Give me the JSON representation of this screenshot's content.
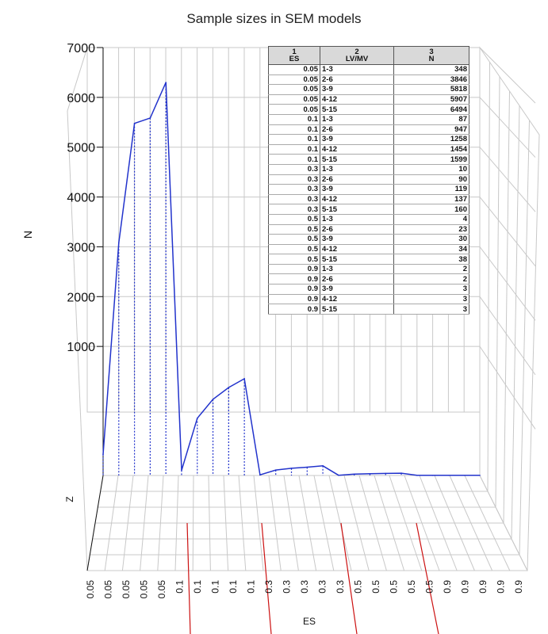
{
  "chart_data": {
    "type": "line",
    "title": "Sample sizes in SEM models",
    "ylabel": "N",
    "zlabel": "Z",
    "xlabel": "ES",
    "ylim": [
      0,
      7000
    ],
    "y_ticks": [
      "1000",
      "2000",
      "3000",
      "4000",
      "5000",
      "6000",
      "7000"
    ],
    "x_tick_labels": [
      "0.05",
      "0.05",
      "0.05",
      "0.05",
      "0.05",
      "0.1",
      "0.1",
      "0.1",
      "0.1",
      "0.1",
      "0.3",
      "0.3",
      "0.3",
      "0.3",
      "0.3",
      "0.5",
      "0.5",
      "0.5",
      "0.5",
      "0.5",
      "0.9",
      "0.9",
      "0.9",
      "0.9",
      "0.9"
    ],
    "series": [
      {
        "values": [
          348,
          3846,
          5818,
          5907,
          6494,
          87,
          947,
          1258,
          1454,
          1599,
          10,
          90,
          119,
          137,
          160,
          4,
          23,
          30,
          34,
          38,
          2,
          2,
          3,
          3,
          3
        ]
      }
    ],
    "line_color": "#2233cc",
    "marker_line_color": "#cc1111",
    "grid": true
  },
  "table": {
    "headers": [
      {
        "num": "1",
        "name": "ES"
      },
      {
        "num": "2",
        "name": "LV/MV"
      },
      {
        "num": "3",
        "name": "N"
      }
    ],
    "rows": [
      [
        "0.05",
        "1-3",
        "348"
      ],
      [
        "0.05",
        "2-6",
        "3846"
      ],
      [
        "0.05",
        "3-9",
        "5818"
      ],
      [
        "0.05",
        "4-12",
        "5907"
      ],
      [
        "0.05",
        "5-15",
        "6494"
      ],
      [
        "0.1",
        "1-3",
        "87"
      ],
      [
        "0.1",
        "2-6",
        "947"
      ],
      [
        "0.1",
        "3-9",
        "1258"
      ],
      [
        "0.1",
        "4-12",
        "1454"
      ],
      [
        "0.1",
        "5-15",
        "1599"
      ],
      [
        "0.3",
        "1-3",
        "10"
      ],
      [
        "0.3",
        "2-6",
        "90"
      ],
      [
        "0.3",
        "3-9",
        "119"
      ],
      [
        "0.3",
        "4-12",
        "137"
      ],
      [
        "0.3",
        "5-15",
        "160"
      ],
      [
        "0.5",
        "1-3",
        "4"
      ],
      [
        "0.5",
        "2-6",
        "23"
      ],
      [
        "0.5",
        "3-9",
        "30"
      ],
      [
        "0.5",
        "4-12",
        "34"
      ],
      [
        "0.5",
        "5-15",
        "38"
      ],
      [
        "0.9",
        "1-3",
        "2"
      ],
      [
        "0.9",
        "2-6",
        "2"
      ],
      [
        "0.9",
        "3-9",
        "3"
      ],
      [
        "0.9",
        "4-12",
        "3"
      ],
      [
        "0.9",
        "5-15",
        "3"
      ]
    ]
  }
}
